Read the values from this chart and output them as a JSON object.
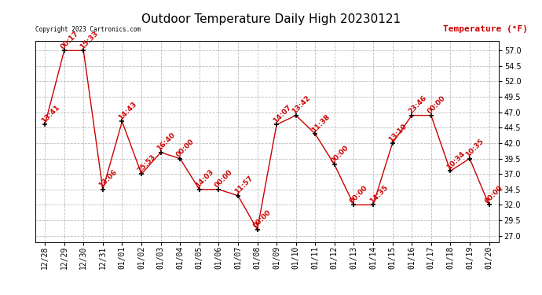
{
  "title": "Outdoor Temperature Daily High 20230121",
  "temp_label": "Temperature (°F)",
  "copyright_text": "Copyright 2023 Cartronics.com",
  "bg_color": "#ffffff",
  "grid_color": "#bbbbbb",
  "line_color": "#cc0000",
  "marker_color": "#000000",
  "label_color": "#cc0000",
  "dates": [
    "12/28",
    "12/29",
    "12/30",
    "12/31",
    "01/01",
    "01/02",
    "01/03",
    "01/04",
    "01/05",
    "01/06",
    "01/07",
    "01/08",
    "01/09",
    "01/10",
    "01/11",
    "01/12",
    "01/13",
    "01/14",
    "01/15",
    "01/16",
    "01/17",
    "01/18",
    "01/19",
    "01/20"
  ],
  "temps": [
    45.0,
    57.0,
    57.0,
    34.5,
    45.5,
    37.0,
    40.5,
    39.5,
    34.5,
    34.5,
    33.5,
    28.0,
    45.0,
    46.5,
    43.5,
    38.5,
    32.0,
    32.0,
    42.0,
    46.5,
    46.5,
    37.5,
    39.5,
    32.0
  ],
  "time_labels": [
    "13:41",
    "00:17",
    "15:33",
    "13:06",
    "14:43",
    "25:53",
    "16:40",
    "00:00",
    "14:03",
    "00:00",
    "11:57",
    "00:00",
    "14:07",
    "13:42",
    "11:38",
    "00:00",
    "00:00",
    "14:35",
    "13:10",
    "23:46",
    "00:00",
    "10:34",
    "10:35",
    "00:00"
  ],
  "yticks": [
    27.0,
    29.5,
    32.0,
    34.5,
    37.0,
    39.5,
    42.0,
    44.5,
    47.0,
    49.5,
    52.0,
    54.5,
    57.0
  ],
  "ylim": [
    26.0,
    58.5
  ],
  "title_fontsize": 11,
  "tick_fontsize": 7,
  "label_fontsize": 6.5,
  "ylabel_fontsize": 8
}
